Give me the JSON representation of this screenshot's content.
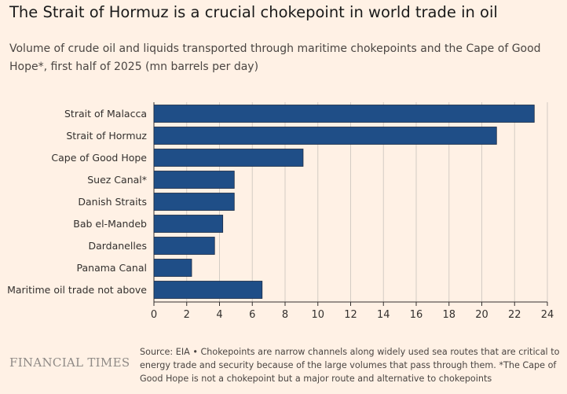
{
  "title": "The Strait of Hormuz is a crucial chokepoint in world trade in oil",
  "subtitle": "Volume of crude oil and liquids transported through maritime chokepoints and the Cape of Good Hope*, first half of 2025 (mn barrels per day)",
  "brand": "FINANCIAL TIMES",
  "source": "Source: EIA • Chokepoints are narrow channels along widely used sea routes that are critical to energy trade and security because of the large volumes that pass through them. *The Cape of Good Hope is not a chokepoint but a major route and alternative to chokepoints",
  "colors": {
    "bar": "#1f4e87",
    "bar_stroke": "#1a2b45",
    "grid": "#d3ccc4",
    "axis": "#33302e",
    "background": "#fff1e5"
  },
  "chart_data": {
    "type": "bar",
    "orientation": "horizontal",
    "categories": [
      "Strait of Malacca",
      "Strait of Hormuz",
      "Cape of Good Hope",
      "Suez Canal*",
      "Danish Straits",
      "Bab el-Mandeb",
      "Dardanelles",
      "Panama Canal",
      "Maritime oil trade not above"
    ],
    "values": [
      23.2,
      20.9,
      9.1,
      4.9,
      4.9,
      4.2,
      3.7,
      2.3,
      6.6
    ],
    "xlim": [
      0,
      24
    ],
    "xticks": [
      "0",
      "2",
      "4",
      "6",
      "8",
      "10",
      "12",
      "14",
      "16",
      "18",
      "20",
      "22",
      "24"
    ],
    "grid": true,
    "legend": false
  }
}
